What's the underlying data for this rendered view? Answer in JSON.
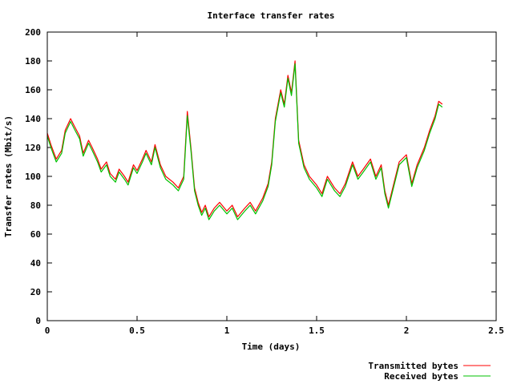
{
  "chart_data": {
    "type": "line",
    "title": "Interface transfer rates",
    "xlabel": "Time (days)",
    "ylabel": "Transfer rates (Mbit/s)",
    "xlim": [
      0,
      2.5
    ],
    "ylim": [
      0,
      200
    ],
    "x_ticks": [
      0,
      0.5,
      1,
      1.5,
      2,
      2.5
    ],
    "x_tick_labels": [
      "0",
      "0.5",
      "1",
      "1.5",
      "2",
      "2.5"
    ],
    "y_ticks": [
      0,
      20,
      40,
      60,
      80,
      100,
      120,
      140,
      160,
      180,
      200
    ],
    "y_tick_labels": [
      "0",
      "20",
      "40",
      "60",
      "80",
      "100",
      "120",
      "140",
      "160",
      "180",
      "200"
    ],
    "grid": false,
    "legend_position": "bottom-right",
    "series": [
      {
        "name": "Transmitted bytes",
        "color": "#ff0000",
        "x": [
          0,
          0.02,
          0.05,
          0.08,
          0.1,
          0.13,
          0.15,
          0.18,
          0.2,
          0.23,
          0.25,
          0.28,
          0.3,
          0.33,
          0.35,
          0.38,
          0.4,
          0.43,
          0.45,
          0.48,
          0.5,
          0.53,
          0.55,
          0.58,
          0.6,
          0.63,
          0.66,
          0.7,
          0.73,
          0.76,
          0.78,
          0.8,
          0.82,
          0.84,
          0.86,
          0.88,
          0.9,
          0.93,
          0.96,
          1.0,
          1.03,
          1.06,
          1.1,
          1.13,
          1.16,
          1.2,
          1.23,
          1.25,
          1.27,
          1.3,
          1.32,
          1.34,
          1.36,
          1.38,
          1.4,
          1.43,
          1.46,
          1.5,
          1.53,
          1.56,
          1.6,
          1.63,
          1.66,
          1.7,
          1.73,
          1.76,
          1.8,
          1.83,
          1.86,
          1.88,
          1.9,
          1.93,
          1.96,
          2.0,
          2.03,
          2.06,
          2.1,
          2.13,
          2.16,
          2.18,
          2.2
        ],
        "values": [
          130,
          122,
          112,
          118,
          132,
          140,
          135,
          128,
          116,
          125,
          120,
          112,
          105,
          110,
          102,
          98,
          105,
          100,
          96,
          108,
          104,
          112,
          118,
          110,
          122,
          108,
          100,
          96,
          92,
          100,
          145,
          120,
          92,
          82,
          75,
          80,
          72,
          78,
          82,
          76,
          80,
          72,
          78,
          82,
          76,
          85,
          95,
          110,
          140,
          160,
          150,
          170,
          158,
          180,
          125,
          108,
          100,
          94,
          88,
          100,
          92,
          88,
          95,
          110,
          100,
          105,
          112,
          100,
          108,
          90,
          80,
          95,
          110,
          115,
          95,
          108,
          120,
          132,
          142,
          152,
          150
        ]
      },
      {
        "name": "Received bytes",
        "color": "#00c000",
        "x": [
          0,
          0.02,
          0.05,
          0.08,
          0.1,
          0.13,
          0.15,
          0.18,
          0.2,
          0.23,
          0.25,
          0.28,
          0.3,
          0.33,
          0.35,
          0.38,
          0.4,
          0.43,
          0.45,
          0.48,
          0.5,
          0.53,
          0.55,
          0.58,
          0.6,
          0.63,
          0.66,
          0.7,
          0.73,
          0.76,
          0.78,
          0.8,
          0.82,
          0.84,
          0.86,
          0.88,
          0.9,
          0.93,
          0.96,
          1.0,
          1.03,
          1.06,
          1.1,
          1.13,
          1.16,
          1.2,
          1.23,
          1.25,
          1.27,
          1.3,
          1.32,
          1.34,
          1.36,
          1.38,
          1.4,
          1.43,
          1.46,
          1.5,
          1.53,
          1.56,
          1.6,
          1.63,
          1.66,
          1.7,
          1.73,
          1.76,
          1.8,
          1.83,
          1.86,
          1.88,
          1.9,
          1.93,
          1.96,
          2.0,
          2.03,
          2.06,
          2.1,
          2.13,
          2.16,
          2.18,
          2.2
        ],
        "values": [
          128,
          120,
          110,
          116,
          130,
          138,
          133,
          126,
          114,
          123,
          118,
          110,
          103,
          108,
          100,
          96,
          103,
          98,
          94,
          106,
          102,
          110,
          116,
          108,
          120,
          106,
          98,
          94,
          90,
          98,
          142,
          118,
          90,
          80,
          73,
          78,
          70,
          76,
          80,
          74,
          78,
          70,
          76,
          80,
          74,
          83,
          93,
          108,
          138,
          158,
          148,
          168,
          156,
          178,
          123,
          106,
          98,
          92,
          86,
          98,
          90,
          86,
          93,
          108,
          98,
          103,
          110,
          98,
          106,
          88,
          78,
          93,
          108,
          113,
          93,
          106,
          118,
          130,
          140,
          150,
          148
        ]
      }
    ]
  }
}
